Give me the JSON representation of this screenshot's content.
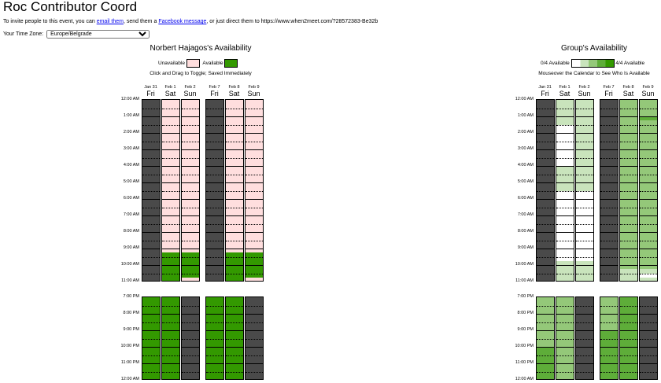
{
  "header": {
    "title": "Roc Contributor Coord",
    "invite_prefix": "To invite people to this event, you can",
    "email_link": "email them",
    "invite_mid": ", send them a",
    "facebook_link": "Facebook message",
    "invite_suffix": ", or just direct them to https://www.when2meet.com/?28572383-Be32b"
  },
  "timezone": {
    "label": "Your Time Zone:",
    "value": "Europe/Belgrade"
  },
  "left_panel": {
    "title": "Norbert Hajagos's Availability",
    "legend_unavailable": "Unavailable",
    "legend_available": "Available",
    "hint": "Click and Drag to Toggle; Saved Immediately"
  },
  "right_panel": {
    "title": "Group's Availability",
    "legend_min": "0/4 Available",
    "legend_max": "4/4 Available",
    "hint": "Mouseover the Calendar to See Who Is Available"
  },
  "colors": {
    "unavailable": "#ffdede",
    "available": "#339900",
    "disabled": "#4a4a4a",
    "group_levels": [
      "#ffffff",
      "#c9e4bc",
      "#94c879",
      "#5ead39",
      "#339900"
    ]
  },
  "days": [
    {
      "date": "Jan 31",
      "dow": "Fri"
    },
    {
      "date": "Feb 1",
      "dow": "Sat"
    },
    {
      "date": "Feb 2",
      "dow": "Sun"
    },
    {
      "date": "Feb 7",
      "dow": "Fri"
    },
    {
      "date": "Feb 8",
      "dow": "Sat"
    },
    {
      "date": "Feb 9",
      "dow": "Sun"
    }
  ],
  "block1_times": [
    "12:00 AM",
    "1:00 AM",
    "2:00 AM",
    "3:00 AM",
    "4:00 AM",
    "5:00 AM",
    "6:00 AM",
    "7:00 AM",
    "8:00 AM",
    "9:00 AM",
    "10:00 AM",
    "11:00 AM"
  ],
  "block2_times": [
    "7:00 PM",
    "8:00 PM",
    "9:00 PM",
    "10:00 PM",
    "11:00 PM",
    "12:00 AM"
  ],
  "my_availability": {
    "block1": [
      "dddddddddddddddddddddddddddddddddddddddddddd",
      "uuuuuuuuuuuuuuuuuuuuuuuuuuuuuuuuuuuuuaaaaaaaaauuu",
      "uuuuuuuuuuuuuuuuuuuuuuuuuuuuuuuuuuuuuaaaaaauuuuuu",
      "dddddddddddddddddddddddddddddddddddddddddddd",
      "uuuuuuuuuuuuuuuuuuuuuuuuuuuuuuuuuuuuuaaaaaaaaauuu",
      "uuuuuuuuuuuuuuuuuuuuuuuuuuuuuuuuuuuuuaaaaaauuuuuu"
    ],
    "block2": [
      "aaaaaaaaaaaaaaaaaaaauuuu",
      "aaaaaaaaaaaaaaaaaaaauuuu",
      "dddddddddddddddddddddddd",
      "aaaaaaaaaaaaaaaaaaaauuuu",
      "aaaaaaaaaaaaaaaaaaaauuuu",
      "dddddddddddddddddddddddd"
    ]
  },
  "group_availability": {
    "block1": [
      "dddddddddddddddddddddddddddddddddddddddddddd",
      "1111110000000000111111000000000000000001111111111",
      "1111111111111111111111000000000000000001111111111",
      "dddddddddddddddddddddddddddddddddddddddddddd",
      "2222222222222222222222222222222222222222211112222",
      "2222322222222222222222222222222222222222210111222"
    ],
    "block2": [
      "222222222222333333332222",
      "222222222222222222221111",
      "dddddddddddddddddddddddd",
      "222222223333333333332222",
      "333333333333333333332222",
      "dddddddddddddddddddddddd"
    ]
  }
}
